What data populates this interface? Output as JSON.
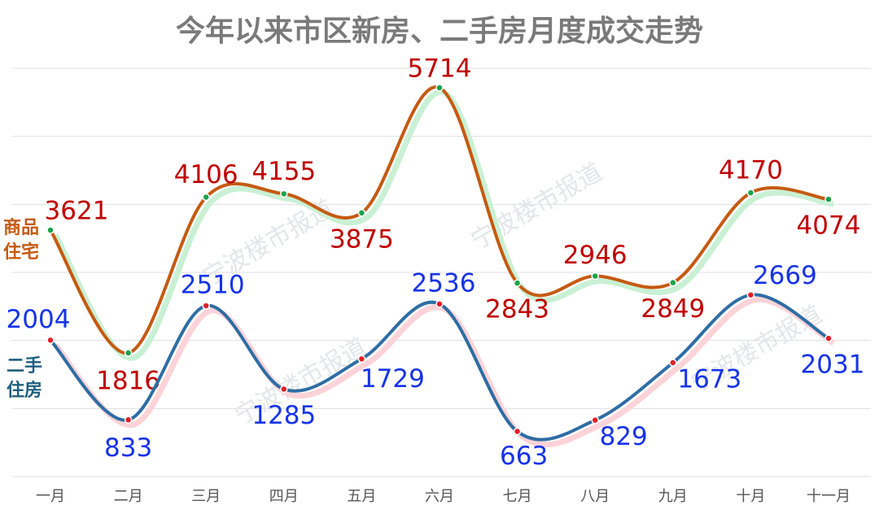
{
  "chart_data": {
    "type": "line",
    "title": "今年以来市区新房、二手房月度成交走势",
    "watermark": "宁波楼市报道",
    "categories": [
      "一月",
      "二月",
      "三月",
      "四月",
      "五月",
      "六月",
      "七月",
      "八月",
      "九月",
      "十月",
      "十一月"
    ],
    "series": [
      {
        "name": "商品住宅",
        "color": "#c55a11",
        "label_color": "#c00000",
        "marker_color": "#19a34a",
        "glow_color": "#c9f0d4",
        "values": [
          3621,
          1816,
          4106,
          4155,
          3875,
          5714,
          2843,
          2946,
          2849,
          4170,
          4074
        ]
      },
      {
        "name": "二手住房",
        "color": "#2e6da4",
        "label_color": "#1633e6",
        "marker_color": "#e0202a",
        "glow_color": "#fbd3d8",
        "values": [
          2004,
          833,
          2510,
          1285,
          1729,
          2536,
          663,
          829,
          1673,
          2669,
          2031
        ]
      }
    ],
    "ylim": [
      0,
      6000
    ],
    "yticks": [
      0,
      1000,
      2000,
      3000,
      4000,
      5000,
      6000
    ],
    "grid": true
  }
}
